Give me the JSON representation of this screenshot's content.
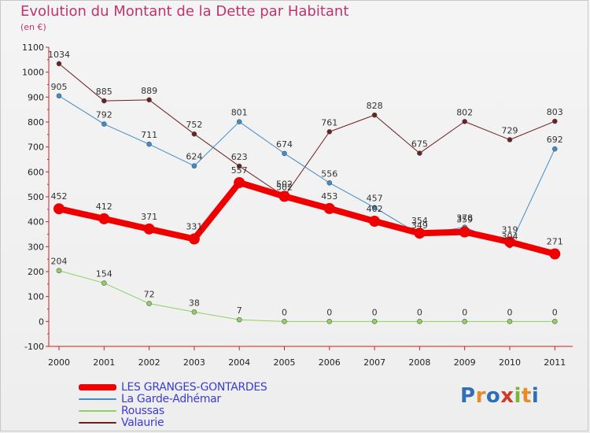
{
  "title": "Evolution du Montant de la Dette par Habitant",
  "unit": "(en €)",
  "logo": {
    "letters": [
      "P",
      "r",
      "o",
      "x",
      "i",
      "t",
      "i"
    ],
    "colors": [
      "#2f6fb5",
      "#e8892a",
      "#2f6fb5",
      "#d13a2a",
      "#78b53a",
      "#e8892a",
      "#2f6fb5"
    ]
  },
  "chart_data": {
    "type": "line",
    "x": [
      "2000",
      "2001",
      "2002",
      "2003",
      "2004",
      "2005",
      "2006",
      "2007",
      "2008",
      "2009",
      "2010",
      "2011"
    ],
    "ylim": [
      -100,
      1100
    ],
    "yticks": [
      -100,
      0,
      100,
      200,
      300,
      400,
      500,
      600,
      700,
      800,
      900,
      1000,
      1100
    ],
    "grid": false,
    "legend": "bottom-left",
    "series": [
      {
        "name": "Valaurie",
        "color": "#6b1f1f",
        "width": 1,
        "marker": 3,
        "values": [
          1034,
          885,
          889,
          752,
          623,
          502,
          761,
          828,
          675,
          802,
          729,
          803
        ]
      },
      {
        "name": "La Garde-Adhémar",
        "color": "#3d8ccc",
        "width": 1,
        "marker": 3,
        "values": [
          905,
          792,
          711,
          624,
          801,
          674,
          556,
          457,
          349,
          378,
          304,
          692
        ]
      },
      {
        "name": "Roussas",
        "color": "#8fd160",
        "width": 1,
        "marker": 3,
        "values": [
          204,
          154,
          72,
          38,
          7,
          0,
          0,
          0,
          0,
          0,
          0,
          0
        ]
      },
      {
        "name": "LES GRANGES-GONTARDES",
        "color": "#ee0000",
        "width": 8,
        "marker": 7,
        "values": [
          452,
          412,
          371,
          331,
          557,
          502,
          453,
          402,
          354,
          359,
          319,
          271
        ]
      }
    ]
  },
  "legend": [
    {
      "label": "LES GRANGES-GONTARDES",
      "color": "#ee0000",
      "thickness": 8
    },
    {
      "label": "La Garde-Adhémar",
      "color": "#3d8ccc",
      "thickness": 2
    },
    {
      "label": "Roussas",
      "color": "#8fd160",
      "thickness": 2
    },
    {
      "label": "Valaurie",
      "color": "#6b1f1f",
      "thickness": 2
    }
  ]
}
